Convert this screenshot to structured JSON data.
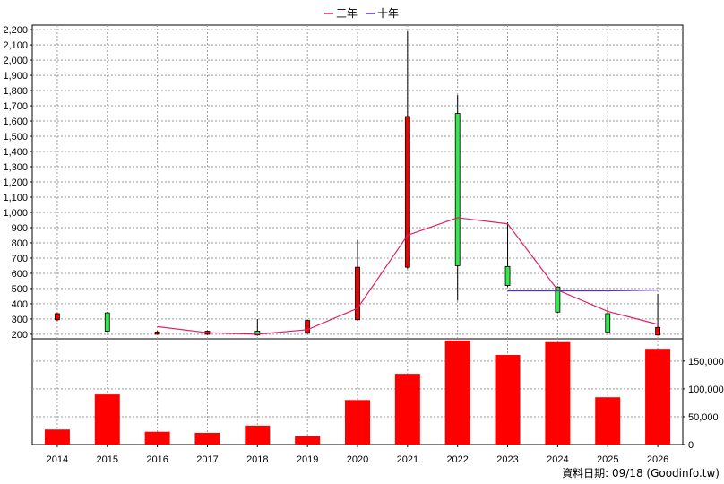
{
  "legend": [
    {
      "label": "三年",
      "color": "#e0206a"
    },
    {
      "label": "十年",
      "color": "#5a2ccc"
    }
  ],
  "credit": "資料日期: 09/18 (Goodinfo.tw)",
  "chart_data": [
    {
      "type": "candlestick",
      "legend_placement": "top-center",
      "grid": true,
      "ylim": [
        170,
        2230
      ],
      "yticks": [
        200,
        300,
        400,
        500,
        600,
        700,
        800,
        900,
        1000,
        1100,
        1200,
        1300,
        1400,
        1500,
        1600,
        1700,
        1800,
        1900,
        2000,
        2100,
        2200
      ],
      "ytick_labels": [
        "200",
        "300",
        "400",
        "500",
        "600",
        "700",
        "800",
        "900",
        "1,000",
        "1,100",
        "1,200",
        "1,300",
        "1,400",
        "1,500",
        "1,600",
        "1,700",
        "1,800",
        "1,900",
        "2,000",
        "2,100",
        "2,200"
      ],
      "categories": [
        "2014",
        "2015",
        "2016",
        "2017",
        "2018",
        "2019",
        "2020",
        "2021",
        "2022",
        "2023",
        "2024",
        "2025",
        "2026"
      ],
      "candles": [
        {
          "open": 335,
          "close": 295,
          "high": 340,
          "low": 285
        },
        {
          "open": 220,
          "close": 340,
          "high": 345,
          "low": 215
        },
        {
          "open": 215,
          "close": 200,
          "high": 222,
          "low": 198
        },
        {
          "open": 220,
          "close": 200,
          "high": 225,
          "low": 195
        },
        {
          "open": 195,
          "close": 220,
          "high": 300,
          "low": 190
        },
        {
          "open": 290,
          "close": 210,
          "high": 295,
          "low": 200
        },
        {
          "open": 640,
          "close": 295,
          "high": 820,
          "low": 290
        },
        {
          "open": 1630,
          "close": 640,
          "high": 2190,
          "low": 630
        },
        {
          "open": 650,
          "close": 1650,
          "high": 1770,
          "low": 420
        },
        {
          "open": 520,
          "close": 645,
          "high": 935,
          "low": 510
        },
        {
          "open": 345,
          "close": 510,
          "high": 515,
          "low": 340
        },
        {
          "open": 215,
          "close": 335,
          "high": 380,
          "low": 210
        },
        {
          "open": 245,
          "close": 195,
          "high": 465,
          "low": 190
        }
      ],
      "series": [
        {
          "name": "三年",
          "color": "#e0206a",
          "values": [
            null,
            null,
            250,
            210,
            200,
            230,
            370,
            850,
            965,
            925,
            490,
            350,
            265
          ]
        },
        {
          "name": "十年",
          "color": "#5a2ccc",
          "values": [
            null,
            null,
            null,
            null,
            null,
            null,
            null,
            null,
            null,
            485,
            485,
            485,
            490
          ]
        }
      ]
    },
    {
      "type": "bar",
      "grid": true,
      "ylim": [
        0,
        190000
      ],
      "yticks": [
        0,
        50000,
        100000,
        150000
      ],
      "ytick_labels": [
        "0",
        "50,000",
        "100,000",
        "150,000"
      ],
      "categories": [
        "2014",
        "2015",
        "2016",
        "2017",
        "2018",
        "2019",
        "2020",
        "2021",
        "2022",
        "2023",
        "2024",
        "2025",
        "2026"
      ],
      "values": [
        27000,
        90000,
        23000,
        21000,
        34000,
        15000,
        80000,
        127000,
        187000,
        161000,
        184000,
        85000,
        172000
      ],
      "color": "#ff0000"
    }
  ]
}
